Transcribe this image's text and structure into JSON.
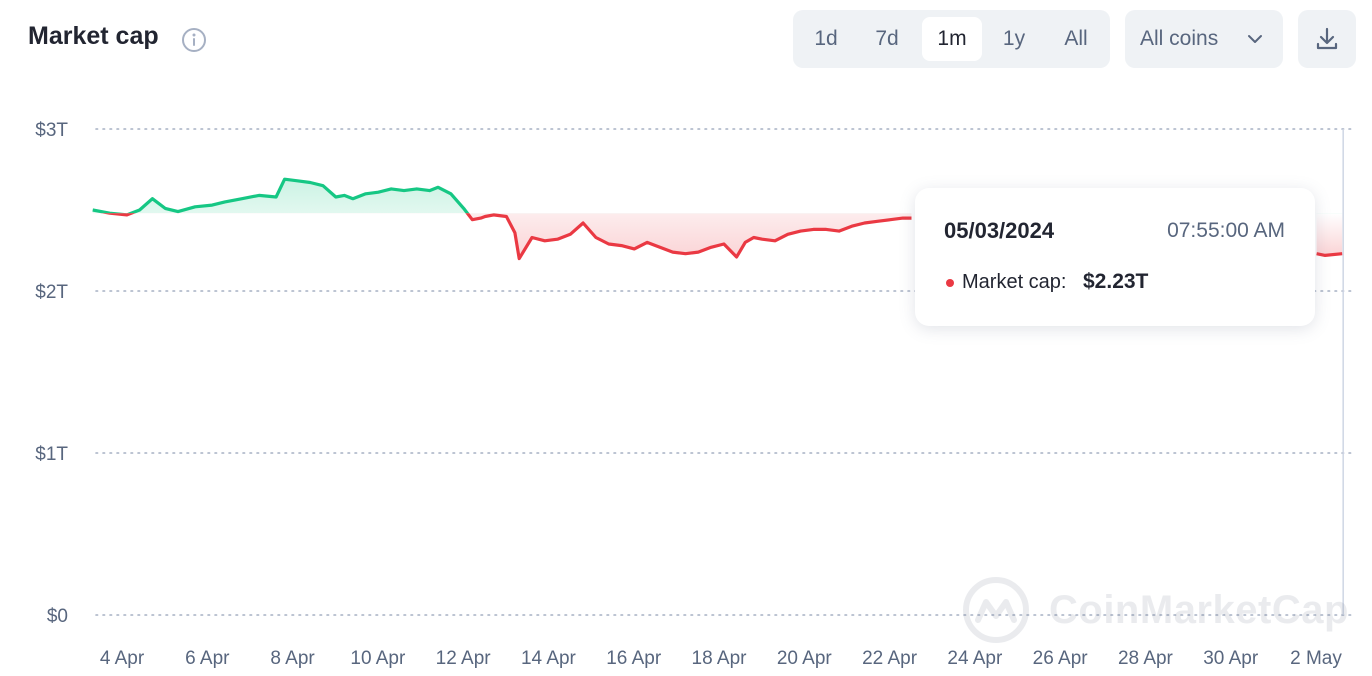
{
  "header": {
    "title": "Market cap",
    "info_icon": "info-circle-icon",
    "timeframes": [
      "1d",
      "7d",
      "1m",
      "1y",
      "All"
    ],
    "active_timeframe": "1m",
    "coin_filter": "All coins",
    "filter_icon": "chevron-down-icon",
    "download_icon": "download-icon"
  },
  "tooltip": {
    "date": "05/03/2024",
    "time": "07:55:00 AM",
    "label": "Market cap:",
    "value": "$2.23T"
  },
  "watermark": {
    "text": "CoinMarketCap",
    "icon": "coinmarketcap-logo-icon"
  },
  "colors": {
    "up": "#16c784",
    "down": "#ea3943",
    "grid": "#a6b0c3",
    "text_muted": "#58667e"
  },
  "chart_data": {
    "type": "area",
    "title": "Market cap",
    "xlabel": "",
    "ylabel": "",
    "y_unit": "$T",
    "ylim": [
      0,
      3
    ],
    "y_ticks": [
      {
        "value": 3,
        "label": "$3T"
      },
      {
        "value": 2,
        "label": "$2T"
      },
      {
        "value": 1,
        "label": "$1T"
      },
      {
        "value": 0,
        "label": "$0"
      }
    ],
    "x_ticks": [
      {
        "day": 4,
        "label": "4 Apr"
      },
      {
        "day": 6,
        "label": "6 Apr"
      },
      {
        "day": 8,
        "label": "8 Apr"
      },
      {
        "day": 10,
        "label": "10 Apr"
      },
      {
        "day": 12,
        "label": "12 Apr"
      },
      {
        "day": 14,
        "label": "14 Apr"
      },
      {
        "day": 16,
        "label": "16 Apr"
      },
      {
        "day": 18,
        "label": "18 Apr"
      },
      {
        "day": 20,
        "label": "20 Apr"
      },
      {
        "day": 22,
        "label": "22 Apr"
      },
      {
        "day": 24,
        "label": "24 Apr"
      },
      {
        "day": 26,
        "label": "26 Apr"
      },
      {
        "day": 28,
        "label": "28 Apr"
      },
      {
        "day": 30,
        "label": "30 Apr"
      },
      {
        "day": 32,
        "label": "2 May"
      }
    ],
    "xlim": [
      3.9,
      33.2
    ],
    "grid": true,
    "legend": "none",
    "baseline": 2.48,
    "hover_x": 33.2,
    "series": [
      {
        "x": [
          3.9,
          4.3,
          4.7,
          5.0,
          5.3,
          5.6,
          5.9,
          6.3,
          6.7,
          7.0,
          7.4,
          7.8,
          8.2,
          8.4,
          8.7,
          9.0,
          9.3,
          9.6,
          9.8,
          10.0,
          10.3,
          10.6,
          10.9,
          11.2,
          11.5,
          11.8,
          12.0,
          12.3,
          12.6,
          12.8,
          13.0,
          13.1,
          13.3,
          13.6,
          13.8,
          13.9,
          14.2,
          14.5,
          14.8,
          15.1,
          15.4,
          15.7,
          16.0,
          16.3,
          16.6,
          16.9,
          17.2,
          17.5,
          17.8,
          18.1,
          18.4,
          18.7,
          19.0,
          19.2,
          19.4,
          19.6,
          19.9,
          20.2,
          20.5,
          20.8,
          21.1,
          21.4,
          21.7,
          22.0,
          22.3,
          22.6,
          22.9,
          23.1,
          32.6,
          32.8,
          33.2
        ],
        "y": [
          2.5,
          2.48,
          2.47,
          2.5,
          2.57,
          2.51,
          2.49,
          2.52,
          2.53,
          2.55,
          2.57,
          2.59,
          2.58,
          2.69,
          2.68,
          2.67,
          2.65,
          2.58,
          2.59,
          2.57,
          2.6,
          2.61,
          2.63,
          2.62,
          2.63,
          2.62,
          2.64,
          2.6,
          2.51,
          2.44,
          2.45,
          2.46,
          2.47,
          2.46,
          2.36,
          2.2,
          2.33,
          2.31,
          2.32,
          2.35,
          2.42,
          2.33,
          2.29,
          2.28,
          2.26,
          2.3,
          2.27,
          2.24,
          2.23,
          2.24,
          2.27,
          2.29,
          2.21,
          2.3,
          2.33,
          2.32,
          2.31,
          2.35,
          2.37,
          2.38,
          2.38,
          2.37,
          2.4,
          2.42,
          2.43,
          2.44,
          2.45,
          2.45,
          2.23,
          2.22,
          2.23
        ]
      }
    ]
  }
}
